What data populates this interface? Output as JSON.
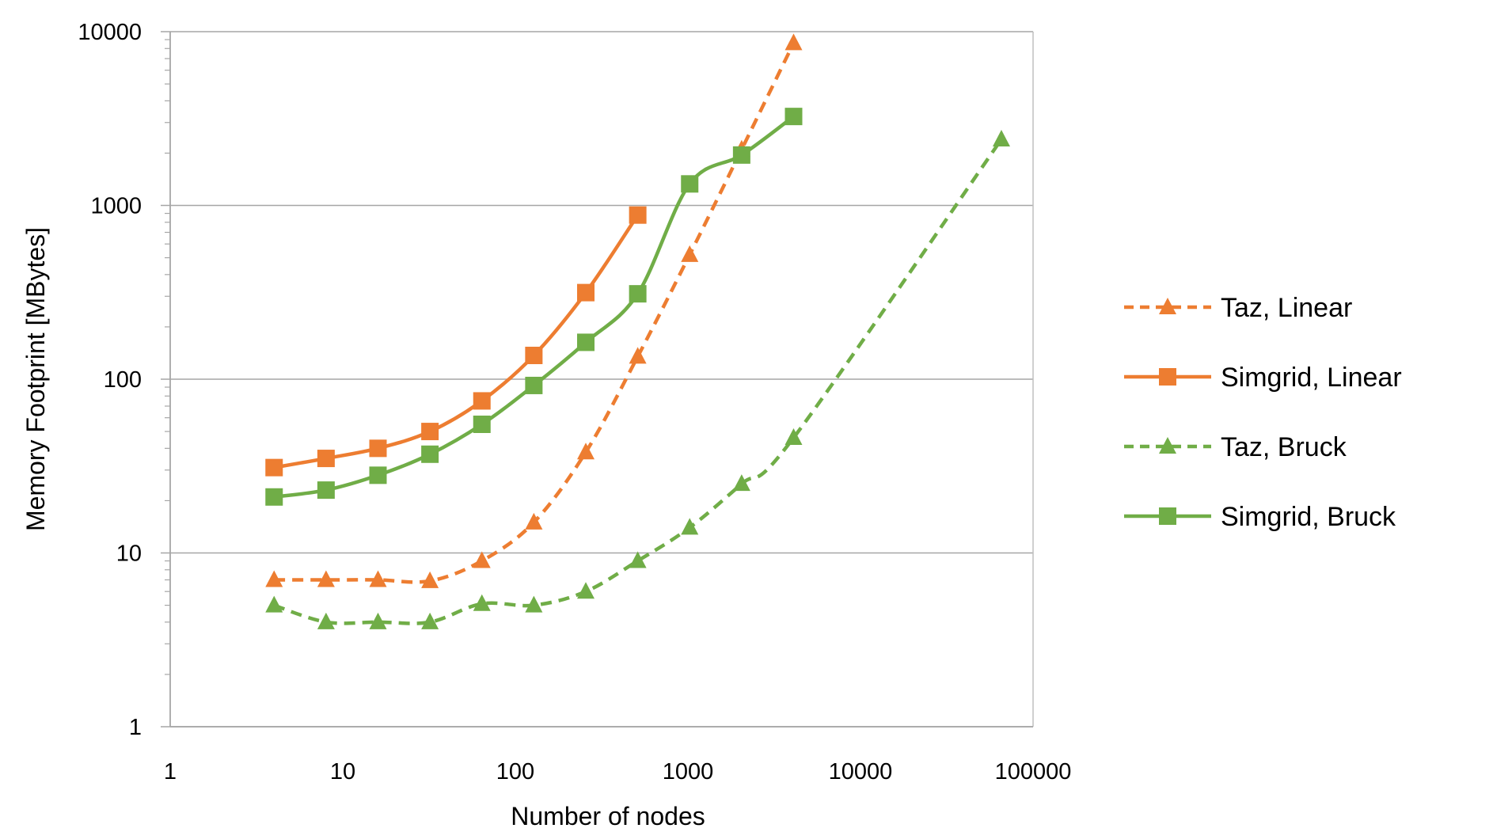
{
  "chart_data": {
    "type": "line",
    "x_scale": "log",
    "y_scale": "log",
    "xlabel": "Number of nodes",
    "ylabel": "Memory Footprint [MBytes]",
    "xlim": [
      1,
      100000
    ],
    "ylim": [
      1,
      10000
    ],
    "x_ticks": [
      "1",
      "10",
      "100",
      "1000",
      "10000",
      "100000"
    ],
    "y_ticks": [
      "1",
      "10",
      "100",
      "1000",
      "10000"
    ],
    "grid": "horizontal major gridlines",
    "legend_position": "right",
    "series": [
      {
        "name": "Taz, Linear",
        "color": "#ED7D31",
        "line_style": "dashed",
        "marker": "triangle",
        "x": [
          4,
          8,
          16,
          32,
          64,
          128,
          256,
          512,
          1024,
          2048,
          4096
        ],
        "y": [
          7,
          7,
          7,
          6.9,
          9,
          15,
          38,
          135,
          520,
          2100,
          8600
        ]
      },
      {
        "name": "Simgrid, Linear",
        "color": "#ED7D31",
        "line_style": "solid",
        "marker": "square",
        "x": [
          4,
          8,
          16,
          32,
          64,
          128,
          256,
          512
        ],
        "y": [
          31,
          35,
          40,
          50,
          75,
          137,
          315,
          880
        ]
      },
      {
        "name": "Taz, Bruck",
        "color": "#70AD47",
        "line_style": "dashed",
        "marker": "triangle",
        "x": [
          4,
          8,
          16,
          32,
          64,
          128,
          256,
          512,
          1024,
          2048,
          4096,
          65536
        ],
        "y": [
          5,
          4,
          4,
          4,
          5.1,
          5,
          6,
          9,
          14,
          25,
          46,
          2400
        ]
      },
      {
        "name": "Simgrid, Bruck",
        "color": "#70AD47",
        "line_style": "solid",
        "marker": "square",
        "x": [
          4,
          8,
          16,
          32,
          64,
          128,
          256,
          512,
          1024,
          2048,
          4096
        ],
        "y": [
          21,
          23,
          28,
          37,
          55,
          92,
          163,
          310,
          1330,
          1950,
          3250
        ]
      }
    ]
  }
}
